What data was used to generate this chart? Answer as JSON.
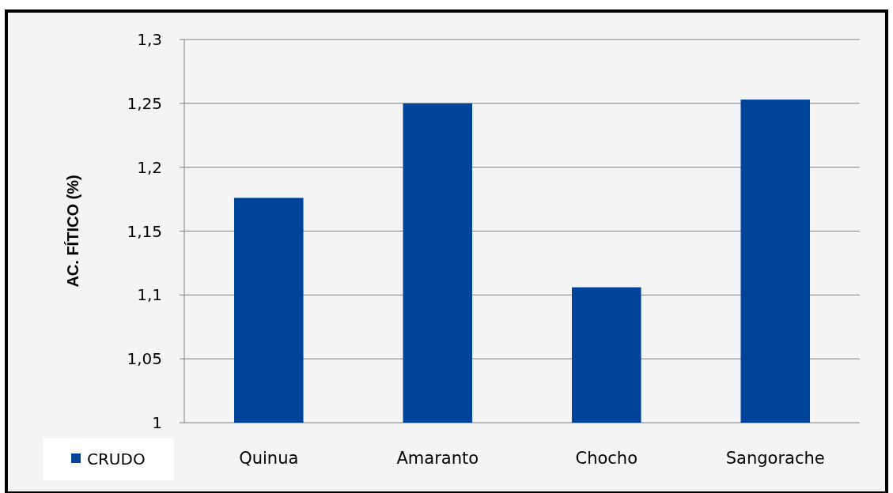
{
  "chart_data": {
    "type": "bar",
    "ylabel": "AC. FÍTICO (%)",
    "categories": [
      "Quinua",
      "Amaranto",
      "Chocho",
      "Sangorache"
    ],
    "series": [
      {
        "name": "CRUDO",
        "color": "#00439a",
        "values": [
          1.176,
          1.25,
          1.106,
          1.253
        ]
      }
    ],
    "ylim": [
      1,
      1.3
    ],
    "yticks": [
      1,
      {
        "value": 1.05,
        "label": "1,05"
      },
      {
        "value": 1.1,
        "label": "1,1"
      },
      {
        "value": 1.15,
        "label": "1,15"
      },
      {
        "value": 1.2,
        "label": "1,2"
      },
      {
        "value": 1.25,
        "label": "1,25"
      },
      {
        "value": 1.3,
        "label": "1,3"
      }
    ],
    "grid": "y",
    "legend": "bottom left"
  }
}
